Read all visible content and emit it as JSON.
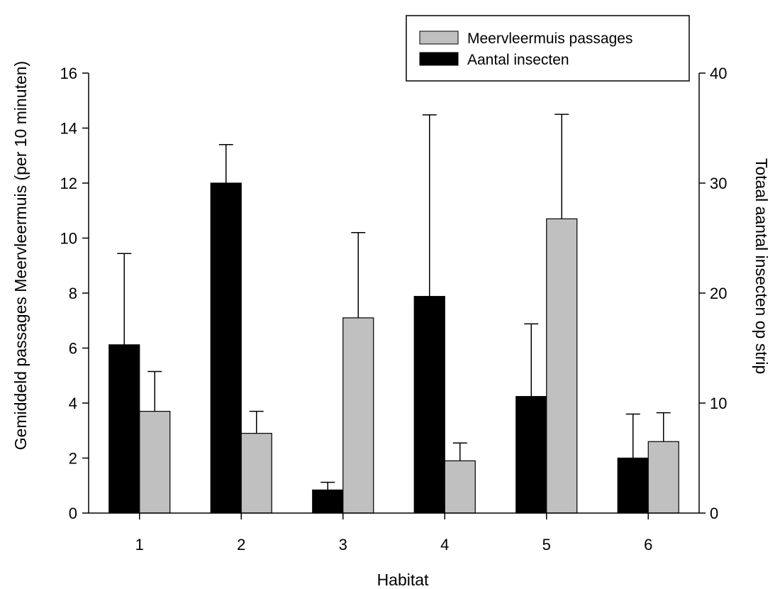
{
  "chart_data": {
    "type": "bar",
    "title": "",
    "xlabel": "Habitat",
    "ylabel": "Gemiddeld passages Meervleermuis (per 10 minuten)",
    "ylabel_right": "Totaal aantal insecten op strip",
    "categories": [
      "1",
      "2",
      "3",
      "4",
      "5",
      "6"
    ],
    "ylim": [
      0,
      16
    ],
    "ylim_right": [
      0,
      40
    ],
    "yticks": [
      "0",
      "2",
      "4",
      "6",
      "8",
      "10",
      "12",
      "14",
      "16"
    ],
    "yticks_right": [
      "0",
      "10",
      "20",
      "30",
      "40"
    ],
    "legend_position": "top-right",
    "grid": false,
    "series": [
      {
        "name": "Aantal insecten",
        "axis": "right",
        "color": "#000000",
        "values": [
          15.3,
          30.0,
          2.1,
          19.7,
          10.6,
          5.0
        ],
        "error_plus": [
          8.3,
          3.5,
          0.7,
          16.5,
          6.6,
          4.0
        ]
      },
      {
        "name": "Meervleermuis passages",
        "axis": "left",
        "color": "#c0c0c0",
        "values": [
          3.7,
          2.9,
          7.1,
          1.9,
          10.7,
          2.6
        ],
        "error_plus": [
          1.45,
          0.8,
          3.1,
          0.65,
          3.8,
          1.05
        ]
      }
    ]
  }
}
